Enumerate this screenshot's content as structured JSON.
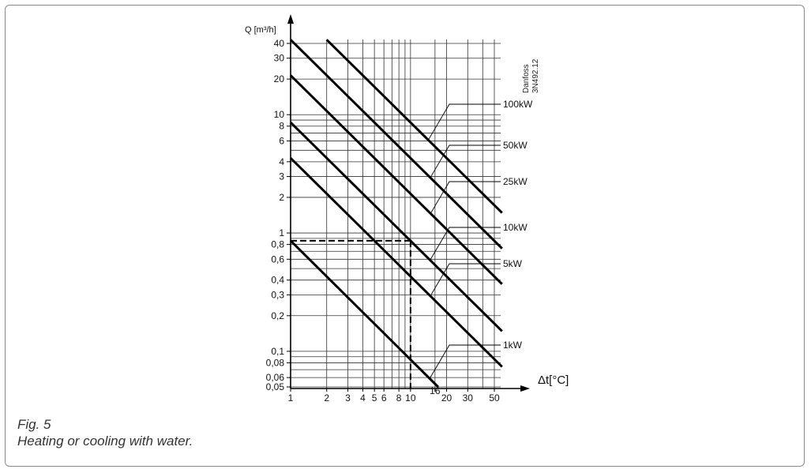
{
  "caption": {
    "fig": "Fig. 5",
    "text": "Heating or cooling with water."
  },
  "chart_data": {
    "type": "line",
    "title": "",
    "xlabel": "Δt[°C]",
    "ylabel": "Q [m³/h]",
    "x_scale": "log",
    "y_scale": "log",
    "xlim": [
      1,
      58
    ],
    "ylim": [
      0.05,
      45
    ],
    "grid": true,
    "x_ticks": [
      {
        "value": 1,
        "label": "1"
      },
      {
        "value": 2,
        "label": "2"
      },
      {
        "value": 3,
        "label": "3"
      },
      {
        "value": 4,
        "label": "4"
      },
      {
        "value": 5,
        "label": "5"
      },
      {
        "value": 6,
        "label": "6"
      },
      {
        "value": 8,
        "label": "8"
      },
      {
        "value": 10,
        "label": "10"
      },
      {
        "value": 16,
        "label": "16"
      },
      {
        "value": 20,
        "label": "20"
      },
      {
        "value": 30,
        "label": "30"
      },
      {
        "value": 50,
        "label": "50"
      }
    ],
    "x_gridlines": [
      1,
      2,
      3,
      4,
      5,
      6,
      7,
      8,
      9,
      10,
      16,
      20,
      30,
      40,
      50
    ],
    "y_ticks": [
      {
        "value": 40,
        "label": "40"
      },
      {
        "value": 30,
        "label": "30"
      },
      {
        "value": 20,
        "label": "20"
      },
      {
        "value": 10,
        "label": "10"
      },
      {
        "value": 8,
        "label": "8"
      },
      {
        "value": 6,
        "label": "6"
      },
      {
        "value": 4,
        "label": "4"
      },
      {
        "value": 3,
        "label": "3"
      },
      {
        "value": 2,
        "label": "2"
      },
      {
        "value": 1,
        "label": "1"
      },
      {
        "value": 0.8,
        "label": "0,8"
      },
      {
        "value": 0.6,
        "label": "0,6"
      },
      {
        "value": 0.4,
        "label": "0,4"
      },
      {
        "value": 0.3,
        "label": "0,3"
      },
      {
        "value": 0.2,
        "label": "0,2"
      },
      {
        "value": 0.1,
        "label": "0,1"
      },
      {
        "value": 0.08,
        "label": "0,08"
      },
      {
        "value": 0.06,
        "label": "0,06"
      },
      {
        "value": 0.05,
        "label": "0,05"
      }
    ],
    "y_gridlines": [
      40,
      30,
      20,
      10,
      9,
      8,
      7,
      6,
      5,
      4,
      3,
      2,
      1,
      0.9,
      0.8,
      0.7,
      0.6,
      0.5,
      0.4,
      0.3,
      0.2,
      0.1,
      0.09,
      0.08,
      0.07,
      0.06,
      0.05
    ],
    "series": [
      {
        "name": "1kW",
        "points": [
          [
            1,
            0.86
          ],
          [
            17,
            0.05
          ]
        ]
      },
      {
        "name": "5kW",
        "points": [
          [
            1,
            4.3
          ],
          [
            58,
            0.074
          ]
        ]
      },
      {
        "name": "",
        "points": [
          [
            1,
            8.6
          ],
          [
            58,
            0.148
          ]
        ]
      },
      {
        "name": "10kW",
        "points": [
          [
            1,
            8.6
          ],
          [
            58,
            0.148
          ]
        ]
      },
      {
        "name": "",
        "points": [
          [
            1,
            21.5
          ],
          [
            58,
            0.37
          ]
        ]
      },
      {
        "name": "25kW",
        "points": [
          [
            1,
            21.5
          ],
          [
            58,
            0.37
          ]
        ]
      },
      {
        "name": "50kW",
        "points": [
          [
            1,
            43
          ],
          [
            58,
            0.74
          ]
        ]
      },
      {
        "name": "100kW",
        "points": [
          [
            2,
            43
          ],
          [
            58,
            1.48
          ]
        ]
      }
    ],
    "lines": [
      {
        "name": "1kW",
        "points": [
          [
            1,
            0.86
          ],
          [
            17,
            0.05
          ]
        ]
      },
      {
        "name": "5kW",
        "points": [
          [
            1,
            4.3
          ],
          [
            58,
            0.074
          ]
        ]
      },
      {
        "name": "10kW",
        "points": [
          [
            1,
            8.6
          ],
          [
            58,
            0.148
          ]
        ]
      },
      {
        "name": "25kW",
        "points": [
          [
            1,
            21.5
          ],
          [
            58,
            0.37
          ]
        ]
      },
      {
        "name": "50kW",
        "points": [
          [
            1,
            43
          ],
          [
            58,
            0.74
          ]
        ]
      },
      {
        "name": "100kW",
        "points": [
          [
            2,
            43
          ],
          [
            58,
            1.48
          ]
        ]
      }
    ],
    "example": {
      "dt": 10,
      "q": 0.86
    },
    "code_text": [
      "Danfoss",
      "3N492.12"
    ]
  }
}
